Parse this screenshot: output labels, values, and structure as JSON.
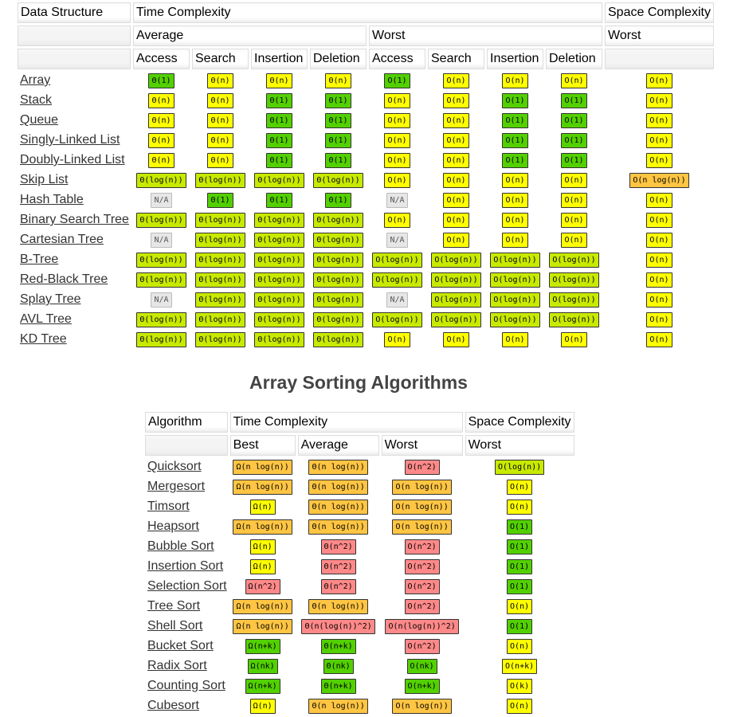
{
  "ds_table": {
    "headers": {
      "data_structure": "Data Structure",
      "time_complexity": "Time Complexity",
      "space_complexity": "Space Complexity",
      "average": "Average",
      "worst": "Worst",
      "space_worst": "Worst",
      "cols": [
        "Access",
        "Search",
        "Insertion",
        "Deletion",
        "Access",
        "Search",
        "Insertion",
        "Deletion"
      ]
    },
    "rows": [
      {
        "name": "Array",
        "cells": [
          [
            "Θ(1)",
            "green"
          ],
          [
            "Θ(n)",
            "yellow"
          ],
          [
            "Θ(n)",
            "yellow"
          ],
          [
            "Θ(n)",
            "yellow"
          ],
          [
            "O(1)",
            "green"
          ],
          [
            "O(n)",
            "yellow"
          ],
          [
            "O(n)",
            "yellow"
          ],
          [
            "O(n)",
            "yellow"
          ],
          [
            "O(n)",
            "yellow"
          ]
        ]
      },
      {
        "name": "Stack",
        "cells": [
          [
            "Θ(n)",
            "yellow"
          ],
          [
            "Θ(n)",
            "yellow"
          ],
          [
            "Θ(1)",
            "green"
          ],
          [
            "Θ(1)",
            "green"
          ],
          [
            "O(n)",
            "yellow"
          ],
          [
            "O(n)",
            "yellow"
          ],
          [
            "O(1)",
            "green"
          ],
          [
            "O(1)",
            "green"
          ],
          [
            "O(n)",
            "yellow"
          ]
        ]
      },
      {
        "name": "Queue",
        "cells": [
          [
            "Θ(n)",
            "yellow"
          ],
          [
            "Θ(n)",
            "yellow"
          ],
          [
            "Θ(1)",
            "green"
          ],
          [
            "Θ(1)",
            "green"
          ],
          [
            "O(n)",
            "yellow"
          ],
          [
            "O(n)",
            "yellow"
          ],
          [
            "O(1)",
            "green"
          ],
          [
            "O(1)",
            "green"
          ],
          [
            "O(n)",
            "yellow"
          ]
        ]
      },
      {
        "name": "Singly-Linked List",
        "cells": [
          [
            "Θ(n)",
            "yellow"
          ],
          [
            "Θ(n)",
            "yellow"
          ],
          [
            "Θ(1)",
            "green"
          ],
          [
            "Θ(1)",
            "green"
          ],
          [
            "O(n)",
            "yellow"
          ],
          [
            "O(n)",
            "yellow"
          ],
          [
            "O(1)",
            "green"
          ],
          [
            "O(1)",
            "green"
          ],
          [
            "O(n)",
            "yellow"
          ]
        ]
      },
      {
        "name": "Doubly-Linked List",
        "cells": [
          [
            "Θ(n)",
            "yellow"
          ],
          [
            "Θ(n)",
            "yellow"
          ],
          [
            "Θ(1)",
            "green"
          ],
          [
            "Θ(1)",
            "green"
          ],
          [
            "O(n)",
            "yellow"
          ],
          [
            "O(n)",
            "yellow"
          ],
          [
            "O(1)",
            "green"
          ],
          [
            "O(1)",
            "green"
          ],
          [
            "O(n)",
            "yellow"
          ]
        ]
      },
      {
        "name": "Skip List",
        "cells": [
          [
            "Θ(log(n))",
            "lgreen"
          ],
          [
            "Θ(log(n))",
            "lgreen"
          ],
          [
            "Θ(log(n))",
            "lgreen"
          ],
          [
            "Θ(log(n))",
            "lgreen"
          ],
          [
            "O(n)",
            "yellow"
          ],
          [
            "O(n)",
            "yellow"
          ],
          [
            "O(n)",
            "yellow"
          ],
          [
            "O(n)",
            "yellow"
          ],
          [
            "O(n log(n))",
            "orange"
          ]
        ]
      },
      {
        "name": "Hash Table",
        "cells": [
          [
            "N/A",
            "gray"
          ],
          [
            "Θ(1)",
            "green"
          ],
          [
            "Θ(1)",
            "green"
          ],
          [
            "Θ(1)",
            "green"
          ],
          [
            "N/A",
            "gray"
          ],
          [
            "O(n)",
            "yellow"
          ],
          [
            "O(n)",
            "yellow"
          ],
          [
            "O(n)",
            "yellow"
          ],
          [
            "O(n)",
            "yellow"
          ]
        ]
      },
      {
        "name": "Binary Search Tree",
        "cells": [
          [
            "Θ(log(n))",
            "lgreen"
          ],
          [
            "Θ(log(n))",
            "lgreen"
          ],
          [
            "Θ(log(n))",
            "lgreen"
          ],
          [
            "Θ(log(n))",
            "lgreen"
          ],
          [
            "O(n)",
            "yellow"
          ],
          [
            "O(n)",
            "yellow"
          ],
          [
            "O(n)",
            "yellow"
          ],
          [
            "O(n)",
            "yellow"
          ],
          [
            "O(n)",
            "yellow"
          ]
        ]
      },
      {
        "name": "Cartesian Tree",
        "cells": [
          [
            "N/A",
            "gray"
          ],
          [
            "Θ(log(n))",
            "lgreen"
          ],
          [
            "Θ(log(n))",
            "lgreen"
          ],
          [
            "Θ(log(n))",
            "lgreen"
          ],
          [
            "N/A",
            "gray"
          ],
          [
            "O(n)",
            "yellow"
          ],
          [
            "O(n)",
            "yellow"
          ],
          [
            "O(n)",
            "yellow"
          ],
          [
            "O(n)",
            "yellow"
          ]
        ]
      },
      {
        "name": "B-Tree",
        "cells": [
          [
            "Θ(log(n))",
            "lgreen"
          ],
          [
            "Θ(log(n))",
            "lgreen"
          ],
          [
            "Θ(log(n))",
            "lgreen"
          ],
          [
            "Θ(log(n))",
            "lgreen"
          ],
          [
            "O(log(n))",
            "lgreen"
          ],
          [
            "O(log(n))",
            "lgreen"
          ],
          [
            "O(log(n))",
            "lgreen"
          ],
          [
            "O(log(n))",
            "lgreen"
          ],
          [
            "O(n)",
            "yellow"
          ]
        ]
      },
      {
        "name": "Red-Black Tree",
        "cells": [
          [
            "Θ(log(n))",
            "lgreen"
          ],
          [
            "Θ(log(n))",
            "lgreen"
          ],
          [
            "Θ(log(n))",
            "lgreen"
          ],
          [
            "Θ(log(n))",
            "lgreen"
          ],
          [
            "O(log(n))",
            "lgreen"
          ],
          [
            "O(log(n))",
            "lgreen"
          ],
          [
            "O(log(n))",
            "lgreen"
          ],
          [
            "O(log(n))",
            "lgreen"
          ],
          [
            "O(n)",
            "yellow"
          ]
        ]
      },
      {
        "name": "Splay Tree",
        "cells": [
          [
            "N/A",
            "gray"
          ],
          [
            "Θ(log(n))",
            "lgreen"
          ],
          [
            "Θ(log(n))",
            "lgreen"
          ],
          [
            "Θ(log(n))",
            "lgreen"
          ],
          [
            "N/A",
            "gray"
          ],
          [
            "O(log(n))",
            "lgreen"
          ],
          [
            "O(log(n))",
            "lgreen"
          ],
          [
            "O(log(n))",
            "lgreen"
          ],
          [
            "O(n)",
            "yellow"
          ]
        ]
      },
      {
        "name": "AVL Tree",
        "cells": [
          [
            "Θ(log(n))",
            "lgreen"
          ],
          [
            "Θ(log(n))",
            "lgreen"
          ],
          [
            "Θ(log(n))",
            "lgreen"
          ],
          [
            "Θ(log(n))",
            "lgreen"
          ],
          [
            "O(log(n))",
            "lgreen"
          ],
          [
            "O(log(n))",
            "lgreen"
          ],
          [
            "O(log(n))",
            "lgreen"
          ],
          [
            "O(log(n))",
            "lgreen"
          ],
          [
            "O(n)",
            "yellow"
          ]
        ]
      },
      {
        "name": "KD Tree",
        "cells": [
          [
            "Θ(log(n))",
            "lgreen"
          ],
          [
            "Θ(log(n))",
            "lgreen"
          ],
          [
            "Θ(log(n))",
            "lgreen"
          ],
          [
            "Θ(log(n))",
            "lgreen"
          ],
          [
            "O(n)",
            "yellow"
          ],
          [
            "O(n)",
            "yellow"
          ],
          [
            "O(n)",
            "yellow"
          ],
          [
            "O(n)",
            "yellow"
          ],
          [
            "O(n)",
            "yellow"
          ]
        ]
      }
    ]
  },
  "sorting_title": "Array Sorting Algorithms",
  "sort_table": {
    "headers": {
      "algorithm": "Algorithm",
      "time_complexity": "Time Complexity",
      "space_complexity": "Space Complexity",
      "best": "Best",
      "average": "Average",
      "worst": "Worst",
      "space_worst": "Worst"
    },
    "rows": [
      {
        "name": "Quicksort",
        "cells": [
          [
            "Ω(n log(n))",
            "orange"
          ],
          [
            "Θ(n log(n))",
            "orange"
          ],
          [
            "O(n^2)",
            "red"
          ],
          [
            "O(log(n))",
            "lgreen"
          ]
        ]
      },
      {
        "name": "Mergesort",
        "cells": [
          [
            "Ω(n log(n))",
            "orange"
          ],
          [
            "Θ(n log(n))",
            "orange"
          ],
          [
            "O(n log(n))",
            "orange"
          ],
          [
            "O(n)",
            "yellow"
          ]
        ]
      },
      {
        "name": "Timsort",
        "cells": [
          [
            "Ω(n)",
            "yellow"
          ],
          [
            "Θ(n log(n))",
            "orange"
          ],
          [
            "O(n log(n))",
            "orange"
          ],
          [
            "O(n)",
            "yellow"
          ]
        ]
      },
      {
        "name": "Heapsort",
        "cells": [
          [
            "Ω(n log(n))",
            "orange"
          ],
          [
            "Θ(n log(n))",
            "orange"
          ],
          [
            "O(n log(n))",
            "orange"
          ],
          [
            "O(1)",
            "green"
          ]
        ]
      },
      {
        "name": "Bubble Sort",
        "cells": [
          [
            "Ω(n)",
            "yellow"
          ],
          [
            "Θ(n^2)",
            "red"
          ],
          [
            "O(n^2)",
            "red"
          ],
          [
            "O(1)",
            "green"
          ]
        ]
      },
      {
        "name": "Insertion Sort",
        "cells": [
          [
            "Ω(n)",
            "yellow"
          ],
          [
            "Θ(n^2)",
            "red"
          ],
          [
            "O(n^2)",
            "red"
          ],
          [
            "O(1)",
            "green"
          ]
        ]
      },
      {
        "name": "Selection Sort",
        "cells": [
          [
            "Ω(n^2)",
            "red"
          ],
          [
            "Θ(n^2)",
            "red"
          ],
          [
            "O(n^2)",
            "red"
          ],
          [
            "O(1)",
            "green"
          ]
        ]
      },
      {
        "name": "Tree Sort",
        "cells": [
          [
            "Ω(n log(n))",
            "orange"
          ],
          [
            "Θ(n log(n))",
            "orange"
          ],
          [
            "O(n^2)",
            "red"
          ],
          [
            "O(n)",
            "yellow"
          ]
        ]
      },
      {
        "name": "Shell Sort",
        "cells": [
          [
            "Ω(n log(n))",
            "orange"
          ],
          [
            "Θ(n(log(n))^2)",
            "red"
          ],
          [
            "O(n(log(n))^2)",
            "red"
          ],
          [
            "O(1)",
            "green"
          ]
        ]
      },
      {
        "name": "Bucket Sort",
        "cells": [
          [
            "Ω(n+k)",
            "green"
          ],
          [
            "Θ(n+k)",
            "green"
          ],
          [
            "O(n^2)",
            "red"
          ],
          [
            "O(n)",
            "yellow"
          ]
        ]
      },
      {
        "name": "Radix Sort",
        "cells": [
          [
            "Ω(nk)",
            "green"
          ],
          [
            "Θ(nk)",
            "green"
          ],
          [
            "O(nk)",
            "green"
          ],
          [
            "O(n+k)",
            "yellow"
          ]
        ]
      },
      {
        "name": "Counting Sort",
        "cells": [
          [
            "Ω(n+k)",
            "green"
          ],
          [
            "Θ(n+k)",
            "green"
          ],
          [
            "O(n+k)",
            "green"
          ],
          [
            "O(k)",
            "yellow"
          ]
        ]
      },
      {
        "name": "Cubesort",
        "cells": [
          [
            "Ω(n)",
            "yellow"
          ],
          [
            "Θ(n log(n))",
            "orange"
          ],
          [
            "O(n log(n))",
            "orange"
          ],
          [
            "O(n)",
            "yellow"
          ]
        ]
      }
    ]
  },
  "colors": {
    "green": "#53d000",
    "lgreen": "#c8ea00",
    "yellow": "#ffff00",
    "orange": "#ffc543",
    "red": "#ff8989",
    "gray": "#e6e6e6"
  }
}
